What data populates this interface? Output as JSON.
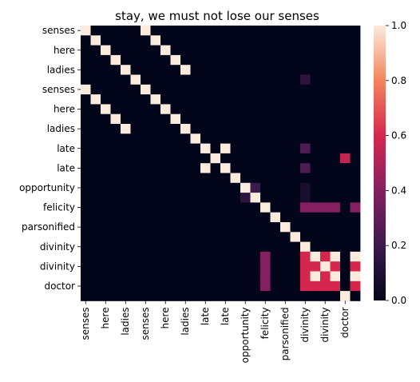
{
  "chart_data": {
    "type": "heatmap",
    "title": "stay, we must not lose our senses",
    "row_labels": [
      "senses",
      "",
      "here",
      "",
      "ladies",
      "",
      "senses",
      "",
      "here",
      "",
      "ladies",
      "",
      "late",
      "",
      "late",
      "",
      "opportunity",
      "",
      "felicity",
      "",
      "parsonified",
      "",
      "divinity",
      "",
      "divinity",
      "",
      "doctor",
      ""
    ],
    "col_labels": [
      "senses",
      "",
      "here",
      "",
      "ladies",
      "",
      "senses",
      "",
      "here",
      "",
      "ladies",
      "",
      "late",
      "",
      "late",
      "",
      "opportunity",
      "",
      "felicity",
      "",
      "parsonified",
      "",
      "divinity",
      "",
      "divinity",
      "",
      "doctor",
      ""
    ],
    "colorbar": {
      "min": 0.0,
      "max": 1.0,
      "ticks": [
        "0.0",
        "0.2",
        "0.4",
        "0.6",
        "0.8",
        "1.0"
      ]
    },
    "matrix": [
      [
        1,
        0,
        0,
        0,
        0,
        0,
        1,
        0,
        0,
        0,
        0,
        0,
        0,
        0,
        0,
        0,
        0,
        0,
        0,
        0,
        0,
        0,
        0,
        0,
        0,
        0,
        0,
        0
      ],
      [
        0,
        1,
        0,
        0,
        0,
        0,
        0,
        1,
        0,
        0,
        0,
        0,
        0,
        0,
        0,
        0,
        0,
        0,
        0,
        0,
        0,
        0,
        0,
        0,
        0,
        0,
        0,
        0
      ],
      [
        0,
        0,
        1,
        0,
        0,
        0,
        0,
        0,
        1,
        0,
        0,
        0,
        0,
        0,
        0,
        0,
        0,
        0,
        0,
        0,
        0,
        0,
        0,
        0,
        0,
        0,
        0,
        0
      ],
      [
        0,
        0,
        0,
        1,
        0,
        0,
        0,
        0,
        0,
        1,
        0,
        0,
        0,
        0,
        0,
        0,
        0,
        0,
        0,
        0,
        0,
        0,
        0,
        0,
        0,
        0,
        0,
        0
      ],
      [
        0,
        0,
        0,
        0,
        1,
        0,
        0,
        0,
        0,
        0,
        1,
        0,
        0,
        0,
        0,
        0,
        0,
        0,
        0,
        0,
        0,
        0,
        0,
        0,
        0,
        0,
        0,
        0
      ],
      [
        0,
        0,
        0,
        0,
        0,
        1,
        0,
        0,
        0,
        0,
        0,
        0,
        0,
        0,
        0,
        0,
        0,
        0,
        0,
        0,
        0,
        0,
        0.15,
        0,
        0,
        0,
        0,
        0
      ],
      [
        1,
        0,
        0,
        0,
        0,
        0,
        1,
        0,
        0,
        0,
        0,
        0,
        0,
        0,
        0,
        0,
        0,
        0,
        0,
        0,
        0,
        0,
        0,
        0,
        0,
        0,
        0,
        0
      ],
      [
        0,
        1,
        0,
        0,
        0,
        0,
        0,
        1,
        0,
        0,
        0,
        0,
        0,
        0,
        0,
        0,
        0,
        0,
        0,
        0,
        0,
        0,
        0,
        0,
        0,
        0,
        0,
        0
      ],
      [
        0,
        0,
        1,
        0,
        0,
        0,
        0,
        0,
        1,
        0,
        0,
        0,
        0,
        0,
        0,
        0,
        0,
        0,
        0,
        0,
        0,
        0,
        0,
        0,
        0,
        0,
        0,
        0
      ],
      [
        0,
        0,
        0,
        1,
        0,
        0,
        0,
        0,
        0,
        1,
        0,
        0,
        0,
        0,
        0,
        0,
        0,
        0,
        0,
        0,
        0,
        0,
        0,
        0,
        0,
        0,
        0,
        0
      ],
      [
        0,
        0,
        0,
        0,
        1,
        0,
        0,
        0,
        0,
        0,
        1,
        0,
        0,
        0,
        0,
        0,
        0,
        0,
        0,
        0,
        0,
        0,
        0,
        0,
        0,
        0,
        0,
        0
      ],
      [
        0,
        0,
        0,
        0,
        0,
        0,
        0,
        0,
        0,
        0,
        0,
        1,
        0,
        0,
        0,
        0,
        0,
        0,
        0,
        0,
        0,
        0,
        0,
        0,
        0,
        0,
        0,
        0
      ],
      [
        0,
        0,
        0,
        0,
        0,
        0,
        0,
        0,
        0,
        0,
        0,
        0,
        1,
        0,
        1,
        0,
        0,
        0,
        0,
        0,
        0,
        0,
        0.25,
        0,
        0,
        0,
        0,
        0
      ],
      [
        0,
        0,
        0,
        0,
        0,
        0,
        0,
        0,
        0,
        0,
        0,
        0,
        0,
        1,
        0,
        0,
        0,
        0,
        0,
        0,
        0,
        0,
        0,
        0,
        0,
        0,
        0.55,
        0
      ],
      [
        0,
        0,
        0,
        0,
        0,
        0,
        0,
        0,
        0,
        0,
        0,
        0,
        1,
        0,
        1,
        0,
        0,
        0,
        0,
        0,
        0,
        0,
        0.25,
        0,
        0,
        0,
        0,
        0
      ],
      [
        0,
        0,
        0,
        0,
        0,
        0,
        0,
        0,
        0,
        0,
        0,
        0,
        0,
        0,
        0,
        1,
        0,
        0,
        0,
        0,
        0,
        0,
        0,
        0,
        0,
        0,
        0,
        0
      ],
      [
        0,
        0,
        0,
        0,
        0,
        0,
        0,
        0,
        0,
        0,
        0,
        0,
        0,
        0,
        0,
        0,
        1,
        0.2,
        0,
        0,
        0,
        0,
        0.08,
        0,
        0,
        0,
        0,
        0
      ],
      [
        0,
        0,
        0,
        0,
        0,
        0,
        0,
        0,
        0,
        0,
        0,
        0,
        0,
        0,
        0,
        0,
        0.15,
        1,
        0,
        0,
        0,
        0,
        0.08,
        0,
        0,
        0,
        0,
        0
      ],
      [
        0,
        0,
        0,
        0,
        0,
        0,
        0,
        0,
        0,
        0,
        0,
        0,
        0,
        0,
        0,
        0,
        0,
        0,
        1,
        0,
        0,
        0,
        0.4,
        0.4,
        0.4,
        0.4,
        0,
        0.4
      ],
      [
        0,
        0,
        0,
        0,
        0,
        0,
        0,
        0,
        0,
        0,
        0,
        0,
        0,
        0,
        0,
        0,
        0,
        0,
        0,
        1,
        0,
        0,
        0,
        0,
        0,
        0,
        0,
        0
      ],
      [
        0,
        0,
        0,
        0,
        0,
        0,
        0,
        0,
        0,
        0,
        0,
        0,
        0,
        0,
        0,
        0,
        0,
        0,
        0,
        0,
        1,
        0,
        0,
        0,
        0,
        0,
        0,
        0
      ],
      [
        0,
        0,
        0,
        0,
        0,
        0,
        0,
        0,
        0,
        0,
        0,
        0,
        0,
        0,
        0,
        0,
        0,
        0,
        0,
        0,
        0,
        1,
        0,
        0,
        0,
        0,
        0,
        0
      ],
      [
        0,
        0,
        0,
        0,
        0,
        0,
        0,
        0,
        0,
        0,
        0,
        0,
        0,
        0,
        0,
        0,
        0,
        0,
        0,
        0,
        0,
        0,
        1,
        0,
        0,
        0,
        0,
        0
      ],
      [
        0,
        0,
        0,
        0,
        0,
        0,
        0,
        0,
        0,
        0,
        0,
        0,
        0,
        0,
        0,
        0,
        0,
        0,
        0.4,
        0,
        0,
        0,
        0.6,
        1,
        0.6,
        1,
        0,
        1
      ],
      [
        0,
        0,
        0,
        0,
        0,
        0,
        0,
        0,
        0,
        0,
        0,
        0,
        0,
        0,
        0,
        0,
        0,
        0,
        0.4,
        0,
        0,
        0,
        0.6,
        0.6,
        1,
        0.6,
        0,
        0.6
      ],
      [
        0,
        0,
        0,
        0,
        0,
        0,
        0,
        0,
        0,
        0,
        0,
        0,
        0,
        0,
        0,
        0,
        0,
        0,
        0.4,
        0,
        0,
        0,
        0.6,
        1,
        0.6,
        1,
        0,
        1
      ],
      [
        0,
        0,
        0,
        0,
        0,
        0,
        0,
        0,
        0,
        0,
        0,
        0,
        0,
        0,
        0,
        0,
        0,
        0,
        0.4,
        0,
        0,
        0,
        0.6,
        0.6,
        0.6,
        0.6,
        0,
        0.6
      ],
      [
        0,
        0,
        0,
        0,
        0,
        0,
        0,
        0,
        0,
        0,
        0,
        0,
        0,
        0,
        0,
        0,
        0,
        0,
        0,
        0,
        0,
        0,
        0,
        0,
        0,
        0,
        1,
        0
      ]
    ]
  }
}
